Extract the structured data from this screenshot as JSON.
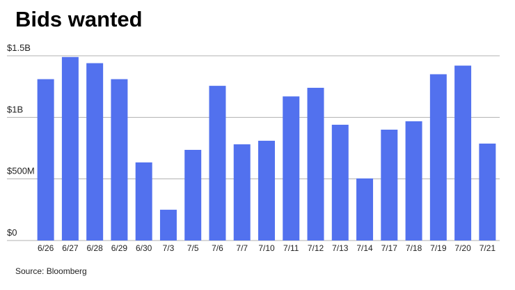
{
  "chart_data": {
    "type": "bar",
    "title": "Bids wanted",
    "source": "Source: Bloomberg",
    "categories": [
      "6/26",
      "6/27",
      "6/28",
      "6/29",
      "6/30",
      "7/3",
      "7/5",
      "7/6",
      "7/7",
      "7/10",
      "7/11",
      "7/12",
      "7/13",
      "7/14",
      "7/17",
      "7/18",
      "7/19",
      "7/20",
      "7/21"
    ],
    "values": [
      1310000000,
      1490000000,
      1440000000,
      1310000000,
      634000000,
      250000000,
      736000000,
      1256000000,
      781000000,
      810000000,
      1170000000,
      1240000000,
      940000000,
      504000000,
      900000000,
      968000000,
      1350000000,
      1420000000,
      787000000
    ],
    "color": "#5271ee",
    "ylim": [
      0,
      1500000000
    ],
    "yticks": [
      {
        "value": 0,
        "label": "$0"
      },
      {
        "value": 500000000,
        "label": "$500M"
      },
      {
        "value": 1000000000,
        "label": "$1B"
      },
      {
        "value": 1500000000,
        "label": "$1.5B"
      }
    ],
    "grid": true
  }
}
